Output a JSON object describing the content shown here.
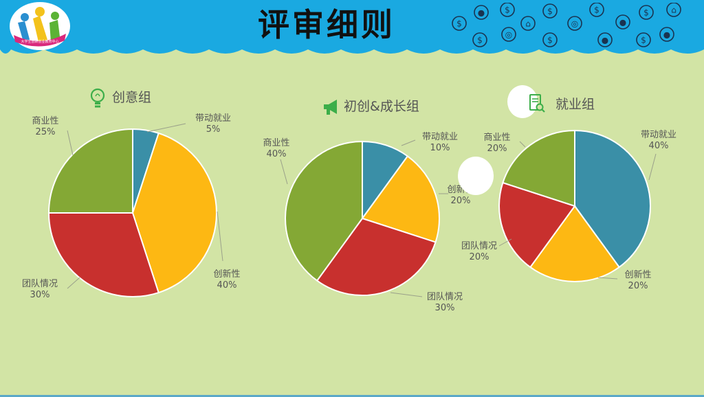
{
  "header": {
    "title": "评审细则",
    "logo_text": "大学生创新创业教育中心"
  },
  "colors": {
    "header": "#1aa9e1",
    "background": "#d2e4a5",
    "teal": "#3a8fa7",
    "yellow": "#fdb813",
    "red": "#c8302e",
    "green": "#84a835"
  },
  "icons": {
    "group1": "lightbulb-icon",
    "group2": "megaphone-icon",
    "group3": "document-search-icon"
  },
  "chart_data": [
    {
      "type": "pie",
      "title": "创意组",
      "slices": [
        {
          "name": "带动就业",
          "value": 5,
          "label": "5%",
          "color": "#3a8fa7"
        },
        {
          "name": "创新性",
          "value": 40,
          "label": "40%",
          "color": "#fdb813"
        },
        {
          "name": "团队情况",
          "value": 30,
          "label": "30%",
          "color": "#c8302e"
        },
        {
          "name": "商业性",
          "value": 25,
          "label": "25%",
          "color": "#84a835"
        }
      ]
    },
    {
      "type": "pie",
      "title": "初创&成长组",
      "slices": [
        {
          "name": "带动就业",
          "value": 10,
          "label": "10%",
          "color": "#3a8fa7"
        },
        {
          "name": "创新性",
          "value": 20,
          "label": "20%",
          "color": "#fdb813"
        },
        {
          "name": "团队情况",
          "value": 30,
          "label": "30%",
          "color": "#c8302e"
        },
        {
          "name": "商业性",
          "value": 40,
          "label": "40%",
          "color": "#84a835"
        }
      ]
    },
    {
      "type": "pie",
      "title": "就业组",
      "slices": [
        {
          "name": "带动就业",
          "value": 40,
          "label": "40%",
          "color": "#3a8fa7"
        },
        {
          "name": "创新性",
          "value": 20,
          "label": "20%",
          "color": "#fdb813"
        },
        {
          "name": "团队情况",
          "value": 20,
          "label": "20%",
          "color": "#c8302e"
        },
        {
          "name": "商业性",
          "value": 20,
          "label": "20%",
          "color": "#84a835"
        }
      ]
    }
  ]
}
